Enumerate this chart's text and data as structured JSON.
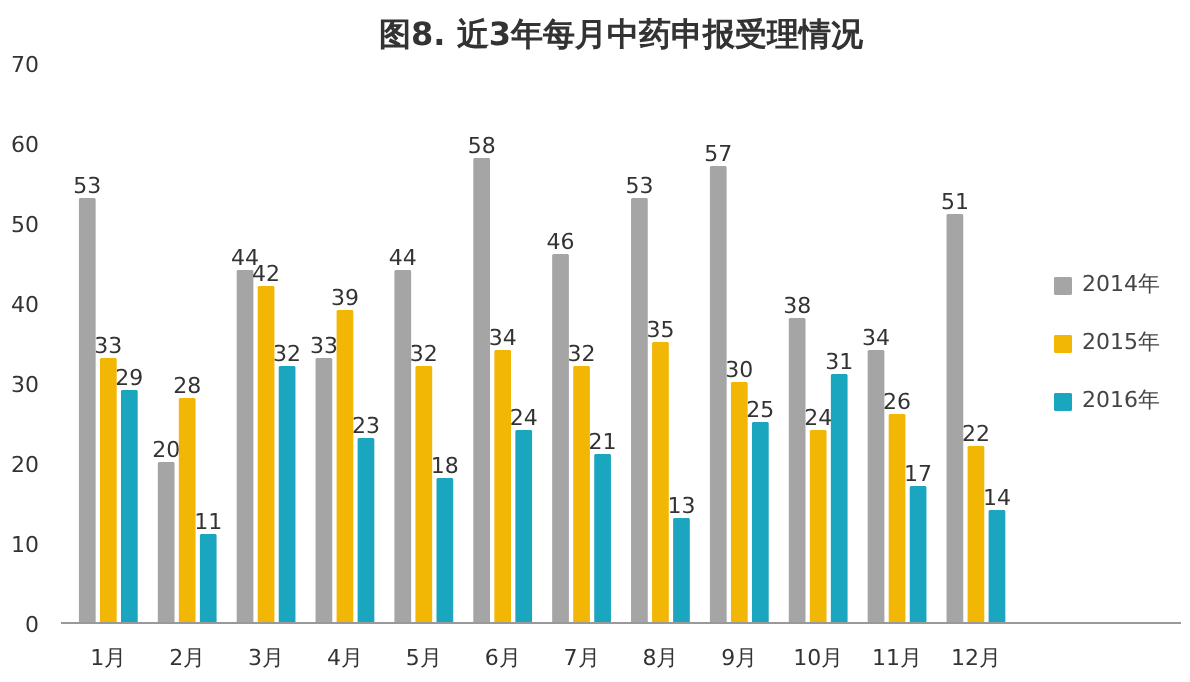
{
  "chart_data": {
    "type": "bar",
    "title": "图8. 近3年每月中药申报受理情况",
    "categories": [
      "1月",
      "2月",
      "3月",
      "4月",
      "5月",
      "6月",
      "7月",
      "8月",
      "9月",
      "10月",
      "11月",
      "12月"
    ],
    "series": [
      {
        "name": "2014年",
        "color": "#a5a5a5",
        "values": [
          53,
          20,
          44,
          33,
          44,
          58,
          46,
          53,
          57,
          38,
          34,
          51
        ]
      },
      {
        "name": "2015年",
        "color": "#f2b705",
        "values": [
          33,
          28,
          42,
          39,
          32,
          34,
          32,
          35,
          30,
          24,
          26,
          22
        ]
      },
      {
        "name": "2016年",
        "color": "#1ba6bf",
        "values": [
          29,
          11,
          32,
          23,
          18,
          24,
          21,
          13,
          25,
          31,
          17,
          14
        ]
      }
    ],
    "ylim": [
      0,
      70
    ],
    "yticks": [
      0,
      10,
      20,
      30,
      40,
      50,
      60,
      70
    ],
    "grid": false,
    "legend": "right",
    "data_labels": true
  }
}
